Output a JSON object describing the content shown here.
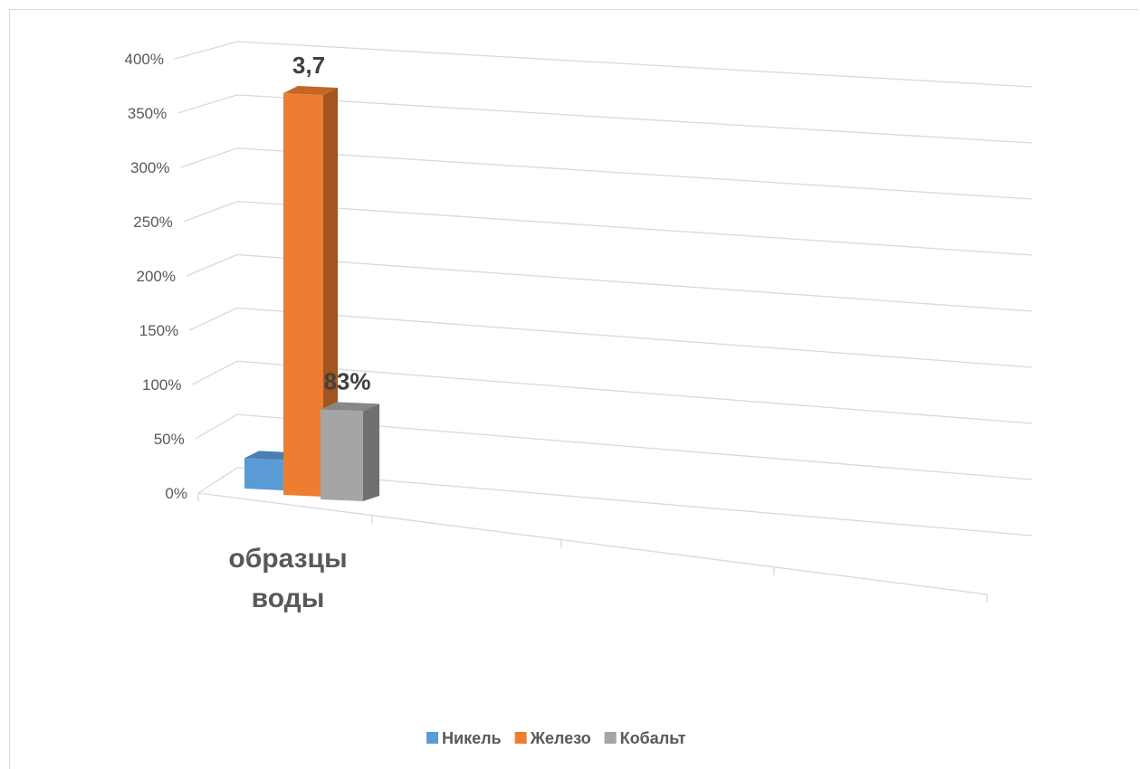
{
  "chart_data": {
    "type": "bar",
    "title": "",
    "xlabel": "",
    "ylabel": "",
    "categories": [
      "образцы воды"
    ],
    "category_label_lines": [
      "образцы",
      "воды"
    ],
    "ylim": [
      0,
      4
    ],
    "y_ticks": [
      0,
      0.5,
      1,
      1.5,
      2,
      2.5,
      3,
      3.5,
      4
    ],
    "y_tick_labels": [
      "0%",
      "50%",
      "100%",
      "150%",
      "200%",
      "250%",
      "300%",
      "350%",
      "400%"
    ],
    "grid": true,
    "legend_position": "bottom",
    "series": [
      {
        "name": "Никель",
        "values": [
          0.28
        ],
        "color": "#5b9bd5",
        "data_label": ""
      },
      {
        "name": "Железо",
        "values": [
          3.7
        ],
        "color": "#ed7d31",
        "data_label": "3,7"
      },
      {
        "name": "Кобальт",
        "values": [
          0.83
        ],
        "color": "#a5a5a5",
        "data_label": "83%"
      }
    ]
  }
}
